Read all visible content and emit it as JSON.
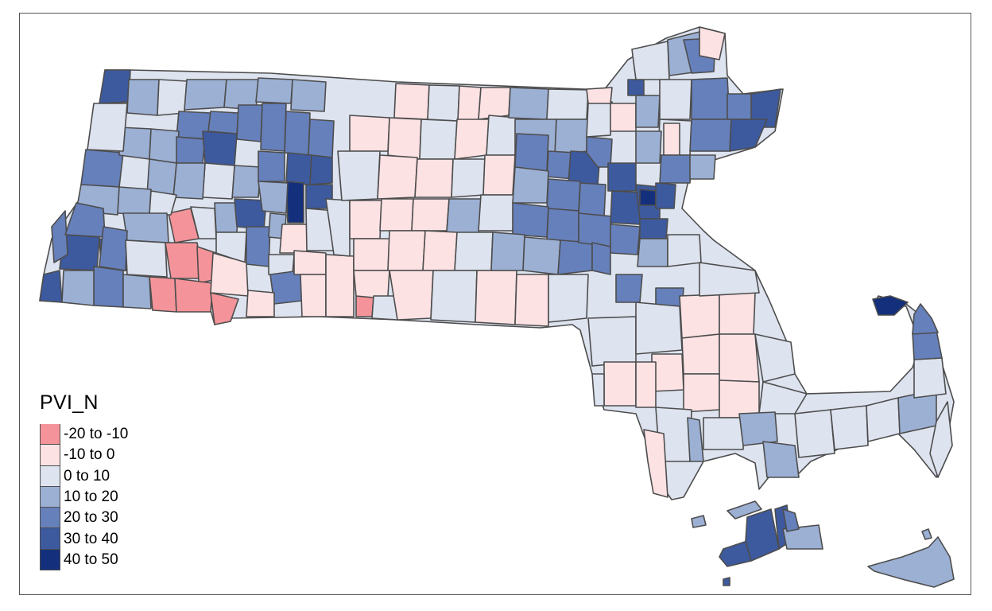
{
  "map": {
    "legend_title": "PVI_N",
    "legend": [
      {
        "label": "-20 to -10",
        "color": "#f4949a"
      },
      {
        "label": "-10 to 0",
        "color": "#fde2e4"
      },
      {
        "label": "0 to 10",
        "color": "#dde3ef"
      },
      {
        "label": "10 to 20",
        "color": "#9cb0d4"
      },
      {
        "label": "20 to 30",
        "color": "#6680bb"
      },
      {
        "label": "30 to 40",
        "color": "#3d5a9e"
      },
      {
        "label": "40 to 50",
        "color": "#14307c"
      }
    ],
    "border_color": "#4d4d4d"
  }
}
